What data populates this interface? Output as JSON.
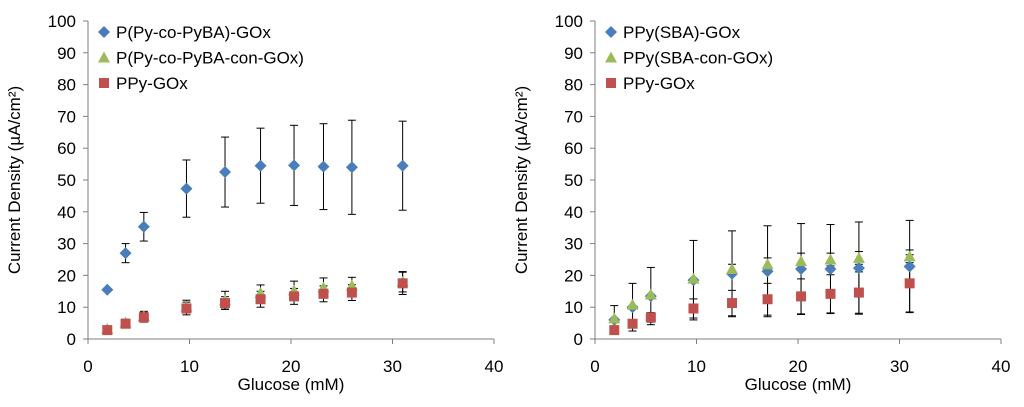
{
  "colors": {
    "blue": "#4a7ebb",
    "green": "#9bbb59",
    "red": "#c0504d",
    "axis": "#7f7f7f",
    "error": "#000000"
  },
  "chart_data": [
    {
      "type": "scatter",
      "title": "",
      "xlabel": "Glucose (mM)",
      "ylabel": "Current Density (µA/cm²)",
      "xlim": [
        0,
        40
      ],
      "ylim": [
        0,
        100
      ],
      "xticks": [
        "0",
        "10",
        "20",
        "30",
        "40"
      ],
      "yticks": [
        "0",
        "10",
        "20",
        "30",
        "40",
        "50",
        "60",
        "70",
        "80",
        "90",
        "100"
      ],
      "legend_position": "top-left",
      "series": [
        {
          "name": "P(Py-co-PyBA)-GOx",
          "marker": "diamond",
          "color": "blue",
          "x": [
            1.9,
            3.7,
            5.5,
            9.7,
            13.5,
            17,
            20.3,
            23.2,
            26,
            31
          ],
          "y": [
            15.5,
            27,
            35.3,
            47.3,
            52.5,
            54.5,
            54.6,
            54.2,
            54,
            54.5
          ],
          "err": [
            0,
            3,
            4.5,
            9,
            11,
            11.8,
            12.6,
            13.5,
            14.8,
            14
          ]
        },
        {
          "name": "P(Py-co-PyBA-con-GOx)",
          "marker": "triangle",
          "color": "green",
          "x": [
            1.9,
            3.7,
            5.5,
            9.7,
            13.5,
            17,
            20.3,
            23.2,
            26,
            31
          ],
          "y": [
            3.2,
            5.2,
            7.2,
            10.2,
            12.2,
            14.5,
            15.2,
            16.2,
            16.8,
            18
          ],
          "err": [
            0,
            1,
            1.5,
            2,
            2.8,
            2.5,
            3,
            3,
            2.6,
            3.2
          ]
        },
        {
          "name": "PPy-GOx",
          "marker": "square",
          "color": "red",
          "x": [
            1.9,
            3.7,
            5.5,
            9.7,
            13.5,
            17,
            20.3,
            23.2,
            26,
            31
          ],
          "y": [
            2.8,
            4.8,
            6.8,
            9.6,
            11.3,
            12.5,
            13.4,
            14.2,
            14.6,
            17.5
          ],
          "err": [
            0,
            1,
            1.5,
            2,
            2,
            2.5,
            2.5,
            2.5,
            2.5,
            3.5
          ]
        }
      ]
    },
    {
      "type": "scatter",
      "title": "",
      "xlabel": "Glucose (mM)",
      "ylabel": "Current Density (µA/cm²)",
      "xlim": [
        0,
        40
      ],
      "ylim": [
        0,
        100
      ],
      "xticks": [
        "0",
        "10",
        "20",
        "30",
        "40"
      ],
      "yticks": [
        "0",
        "10",
        "20",
        "30",
        "40",
        "50",
        "60",
        "70",
        "80",
        "90",
        "100"
      ],
      "legend_position": "top-left",
      "series": [
        {
          "name": "PPy(SBA)-GOx",
          "marker": "diamond",
          "color": "blue",
          "x": [
            1.9,
            3.7,
            5.5,
            9.7,
            13.5,
            17,
            20.3,
            23.2,
            26,
            31
          ],
          "y": [
            6,
            10,
            13.5,
            18.5,
            20.5,
            21.3,
            22,
            22,
            22.3,
            22.8
          ],
          "err": [
            4.5,
            7.5,
            9,
            12.5,
            13.5,
            14.3,
            14.3,
            14,
            14.5,
            14.5
          ]
        },
        {
          "name": "PPy(SBA-con-GOx)",
          "marker": "triangle",
          "color": "green",
          "x": [
            1.9,
            3.7,
            5.5,
            9.7,
            13.5,
            17,
            20.3,
            23.2,
            26,
            31
          ],
          "y": [
            6.5,
            10.8,
            14,
            19,
            22,
            23.5,
            24.5,
            25,
            25.5,
            26
          ],
          "err": [
            0,
            0,
            0,
            0,
            1.5,
            2,
            2.5,
            2,
            2,
            2
          ]
        },
        {
          "name": "PPy-GOx",
          "marker": "square",
          "color": "red",
          "x": [
            1.9,
            3.7,
            5.5,
            9.7,
            13.5,
            17,
            20.3,
            23.2,
            26,
            31
          ],
          "y": [
            2.8,
            4.8,
            6.8,
            9.6,
            11.3,
            12.5,
            13.4,
            14.2,
            14.6,
            17.5
          ],
          "err": [
            0,
            1,
            1.5,
            3,
            4,
            5,
            5.5,
            6,
            6.5,
            9
          ]
        }
      ]
    }
  ]
}
